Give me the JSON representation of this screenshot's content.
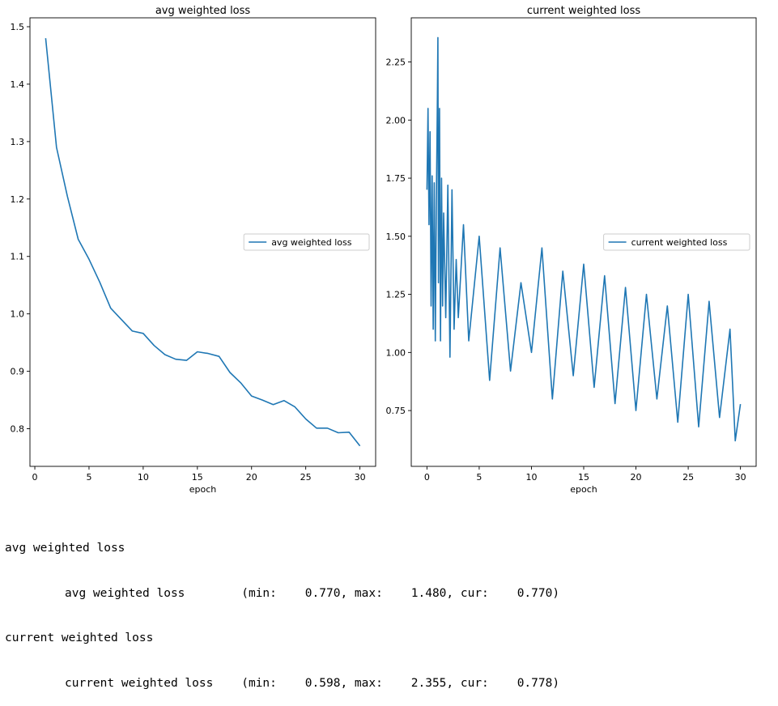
{
  "chart_data": [
    {
      "type": "line",
      "title": "avg weighted loss",
      "xlabel": "epoch",
      "ylabel": "",
      "xlim": [
        -0.45,
        31.45
      ],
      "ylim": [
        0.7345,
        1.5155
      ],
      "xticks": [
        0,
        5,
        10,
        15,
        20,
        25,
        30
      ],
      "yticks": [
        0.8,
        0.9,
        1.0,
        1.1,
        1.2,
        1.3,
        1.4,
        1.5
      ],
      "ytick_labels": [
        "0.8",
        "0.9",
        "1.0",
        "1.1",
        "1.2",
        "1.3",
        "1.4",
        "1.5"
      ],
      "legend": "center-right",
      "grid": false,
      "color": "#1f77b4",
      "series": [
        {
          "name": "avg weighted loss",
          "x": [
            1,
            2,
            3,
            4,
            5,
            6,
            7,
            8,
            9,
            10,
            11,
            12,
            13,
            14,
            15,
            16,
            17,
            18,
            19,
            20,
            21,
            22,
            23,
            24,
            25,
            26,
            27,
            28,
            29,
            30
          ],
          "y": [
            1.48,
            1.29,
            1.205,
            1.13,
            1.095,
            1.055,
            1.01,
            0.99,
            0.97,
            0.966,
            0.945,
            0.929,
            0.921,
            0.919,
            0.934,
            0.931,
            0.926,
            0.898,
            0.88,
            0.857,
            0.85,
            0.842,
            0.849,
            0.838,
            0.817,
            0.801,
            0.801,
            0.793,
            0.794,
            0.77
          ]
        }
      ]
    },
    {
      "type": "line",
      "title": "current weighted loss",
      "xlabel": "epoch",
      "ylabel": "",
      "xlim": [
        -1.5,
        31.5
      ],
      "ylim": [
        0.51,
        2.44
      ],
      "xticks": [
        0,
        5,
        10,
        15,
        20,
        25,
        30
      ],
      "yticks": [
        0.75,
        1.0,
        1.25,
        1.5,
        1.75,
        2.0,
        2.25
      ],
      "ytick_labels": [
        "0.75",
        "1.00",
        "1.25",
        "1.50",
        "1.75",
        "2.00",
        "2.25"
      ],
      "legend": "center-right",
      "grid": false,
      "color": "#1f77b4",
      "series": [
        {
          "name": "current weighted loss",
          "x": [
            0,
            0.1,
            0.2,
            0.3,
            0.4,
            0.5,
            0.6,
            0.7,
            0.8,
            0.9,
            1.0,
            1.05,
            1.1,
            1.2,
            1.3,
            1.4,
            1.5,
            1.6,
            1.8,
            2.0,
            2.2,
            2.4,
            2.6,
            2.8,
            3.0,
            3.5,
            4,
            5,
            6,
            7,
            8,
            9,
            10,
            11,
            12,
            13,
            14,
            15,
            16,
            17,
            18,
            19,
            20,
            21,
            22,
            23,
            24,
            25,
            26,
            27,
            28,
            29,
            29.5,
            30
          ],
          "y": [
            1.7,
            2.05,
            1.55,
            1.95,
            1.2,
            1.76,
            1.1,
            1.73,
            1.05,
            1.65,
            2.1,
            2.355,
            1.3,
            2.05,
            1.05,
            1.75,
            1.2,
            1.6,
            1.15,
            1.72,
            0.98,
            1.7,
            1.1,
            1.4,
            1.15,
            1.55,
            1.05,
            1.5,
            0.88,
            1.45,
            0.92,
            1.3,
            1.0,
            1.45,
            0.8,
            1.35,
            0.9,
            1.38,
            0.85,
            1.33,
            0.78,
            1.28,
            0.75,
            1.25,
            0.8,
            1.2,
            0.7,
            1.25,
            0.68,
            1.22,
            0.72,
            1.1,
            0.62,
            0.778
          ]
        }
      ]
    }
  ],
  "log": {
    "line1": "avg weighted loss",
    "line2": "avg weighted loss        (min:    0.770, max:    1.480, cur:    0.770)",
    "line3": "current weighted loss",
    "line4": "current weighted loss    (min:    0.598, max:    2.355, cur:    0.778)"
  }
}
